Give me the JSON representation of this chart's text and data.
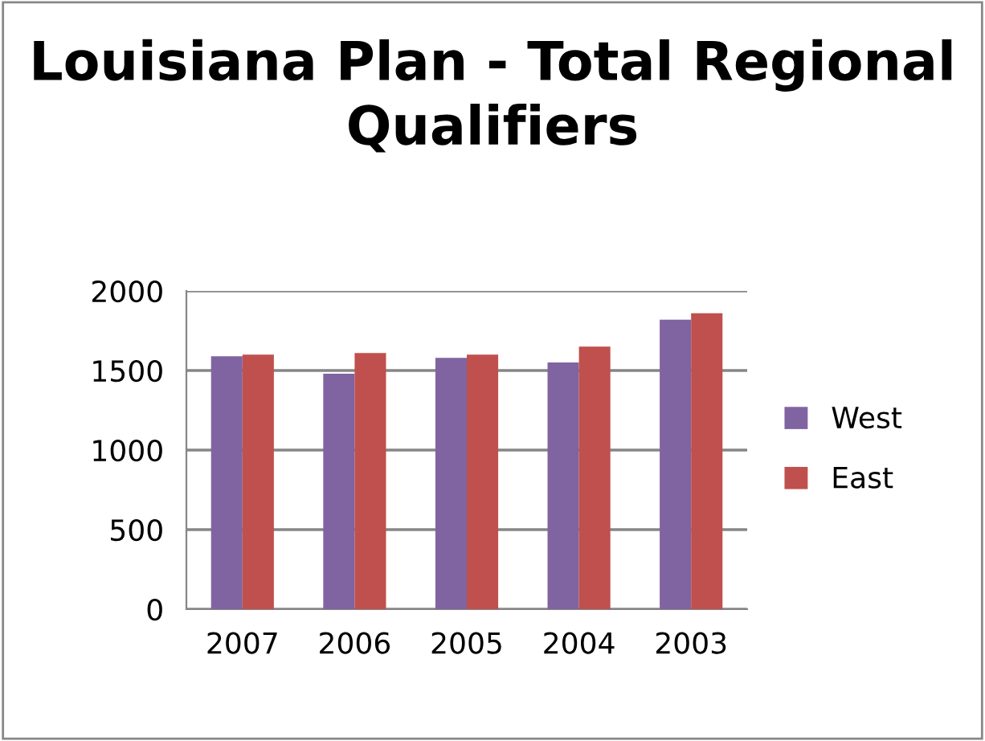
{
  "chart_data": {
    "type": "bar",
    "title": "Louisiana Plan - Total Regional Qualifiers",
    "categories": [
      "2007",
      "2006",
      "2005",
      "2004",
      "2003"
    ],
    "series": [
      {
        "name": "West",
        "color": "#8064a2",
        "values": [
          1590,
          1480,
          1580,
          1550,
          1820
        ]
      },
      {
        "name": "East",
        "color": "#c0504d",
        "values": [
          1600,
          1610,
          1600,
          1650,
          1860
        ]
      }
    ],
    "ylim": [
      0,
      2000
    ],
    "yticks": [
      0,
      500,
      1000,
      1500,
      2000
    ],
    "grid": "y",
    "legend": "right"
  }
}
